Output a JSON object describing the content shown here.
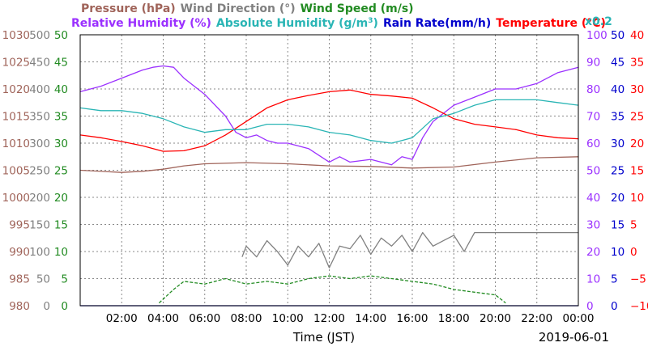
{
  "chart_data": {
    "type": "line",
    "date": "2019-06-01",
    "xlabel": "Time (JST)",
    "x_range_hours": [
      0,
      24
    ],
    "x_ticks": [
      "02:00",
      "04:00",
      "06:00",
      "08:00",
      "10:00",
      "12:00",
      "14:00",
      "16:00",
      "18:00",
      "20:00",
      "22:00",
      "00:00"
    ],
    "grid": true,
    "legend": [
      {
        "name": "Pressure (hPa)",
        "color": "#a0645a"
      },
      {
        "name": "Wind Direction (°)",
        "color": "#808080"
      },
      {
        "name": "Wind Speed (m/s)",
        "color": "#228b22"
      },
      {
        "name": "Relative Humidity (%)",
        "color": "#9b30ff"
      },
      {
        "name": "Absolute Humidity (g/m",
        "sup": "3",
        "close": ")",
        "color": "#2ab5b5"
      },
      {
        "name": "Rain Rate(mm/h)",
        "color": "#0000cc"
      },
      {
        "name": "Temperature (°C)",
        "color": "#ff0000"
      },
      {
        "name": "x0.2",
        "color": "#2ab5b5"
      }
    ],
    "axes": {
      "pressure": {
        "color": "#a0645a",
        "range": [
          980,
          1030
        ],
        "ticks": [
          "1030",
          "1025",
          "1020",
          "1015",
          "1010",
          "1005",
          "1000",
          "995",
          "990",
          "985",
          "980"
        ]
      },
      "wind_direction": {
        "color": "#808080",
        "range": [
          0,
          500
        ],
        "ticks": [
          "500",
          "450",
          "400",
          "350",
          "300",
          "250",
          "200",
          "150",
          "100",
          "50",
          "0"
        ]
      },
      "wind_speed": {
        "color": "#228b22",
        "range": [
          0,
          50
        ],
        "ticks": [
          "50",
          "45",
          "40",
          "35",
          "30",
          "25",
          "20",
          "15",
          "10",
          "5",
          "0"
        ]
      },
      "relative_humidity": {
        "color": "#9b30ff",
        "range": [
          0,
          100
        ],
        "ticks": [
          "100",
          "90",
          "80",
          "70",
          "60",
          "50",
          "40",
          "30",
          "20",
          "10",
          "0"
        ]
      },
      "rain_rate": {
        "color": "#0000cc",
        "range": [
          0,
          50
        ],
        "ticks": [
          "50",
          "45",
          "40",
          "35",
          "30",
          "25",
          "20",
          "15",
          "10",
          "5",
          "0"
        ]
      },
      "temperature": {
        "color": "#ff0000",
        "range": [
          -10,
          40
        ],
        "ticks": [
          "40",
          "35",
          "30",
          "25",
          "20",
          "15",
          "10",
          "5",
          "0",
          "−5",
          "−10"
        ]
      }
    },
    "series": [
      {
        "name": "Relative Humidity (%)",
        "axis": "relative_humidity",
        "color": "#9b30ff",
        "x": [
          0,
          1,
          2,
          3,
          3.5,
          4,
          4.5,
          5,
          6,
          7,
          7.5,
          8,
          8.5,
          9,
          9.5,
          10,
          11,
          12,
          12.5,
          13,
          14,
          15,
          15.5,
          16,
          16.5,
          17,
          18,
          19,
          20,
          21,
          22,
          23,
          24
        ],
        "y": [
          79,
          81,
          84,
          87,
          88,
          88.5,
          88,
          84,
          78,
          70,
          64,
          62,
          63,
          61,
          60,
          60,
          58,
          53,
          55,
          53,
          54,
          52,
          55,
          54,
          62,
          68,
          74,
          77,
          80,
          80,
          82,
          86,
          88
        ]
      },
      {
        "name": "Temperature (°C)",
        "axis": "temperature",
        "color": "#ff0000",
        "x": [
          0,
          1,
          2,
          3,
          4,
          5,
          6,
          7,
          8,
          9,
          10,
          11,
          12,
          13,
          14,
          15,
          16,
          17,
          18,
          19,
          20,
          21,
          22,
          23,
          24
        ],
        "y": [
          21.5,
          21,
          20.3,
          19.5,
          18.5,
          18.6,
          19.5,
          21.5,
          24,
          26.5,
          28,
          28.8,
          29.5,
          29.8,
          29,
          28.7,
          28.3,
          26.5,
          24.5,
          23.5,
          23,
          22.5,
          21.5,
          21,
          20.8
        ]
      },
      {
        "name": "Absolute Humidity (g/m3) x0.2",
        "axis": "relative_humidity",
        "color": "#2ab5b5",
        "x": [
          0,
          1,
          2,
          3,
          4,
          5,
          6,
          7,
          8,
          9,
          10,
          11,
          12,
          13,
          14,
          15,
          15.5,
          16,
          17,
          18,
          19,
          20,
          21,
          22,
          23,
          24
        ],
        "y": [
          73,
          72,
          72,
          71,
          69,
          66,
          64,
          65,
          65,
          67,
          67,
          66,
          64,
          63,
          61,
          60,
          61,
          62,
          69,
          71,
          74,
          76,
          76,
          76,
          75,
          74
        ]
      },
      {
        "name": "Pressure (hPa)",
        "axis": "pressure",
        "color": "#a0645a",
        "x": [
          0,
          2,
          3,
          4,
          5,
          6,
          8,
          10,
          12,
          14,
          16,
          18,
          20,
          22,
          24
        ],
        "y": [
          1005,
          1004.6,
          1004.8,
          1005.2,
          1005.8,
          1006.2,
          1006.4,
          1006.2,
          1005.8,
          1005.7,
          1005.4,
          1005.6,
          1006.5,
          1007.3,
          1007.5
        ]
      },
      {
        "name": "Wind Direction (°)",
        "axis": "wind_direction",
        "color": "#808080",
        "x": [
          7.8,
          8,
          8.5,
          9,
          9.5,
          10,
          10.5,
          11,
          11.5,
          12,
          12.5,
          13,
          13.5,
          14,
          14.5,
          15,
          15.5,
          16,
          16.5,
          17,
          17.5,
          18,
          18.5,
          19,
          20,
          21,
          22,
          23,
          24
        ],
        "y": [
          90,
          110,
          90,
          120,
          100,
          75,
          110,
          90,
          115,
          70,
          110,
          105,
          130,
          95,
          125,
          110,
          130,
          100,
          135,
          110,
          120,
          130,
          100,
          135,
          135,
          135,
          135,
          135,
          135
        ]
      },
      {
        "name": "Wind Speed (m/s)",
        "axis": "wind_speed",
        "color": "#228b22",
        "x": [
          3.8,
          4.5,
          5,
          6,
          7,
          8,
          9,
          10,
          11,
          12,
          13,
          14,
          15,
          16,
          17,
          18,
          19,
          20,
          20.5
        ],
        "y": [
          0.5,
          3,
          4.5,
          4,
          5,
          4,
          4.5,
          4,
          5,
          5.5,
          5,
          5.5,
          5,
          4.5,
          4,
          3,
          2.5,
          2,
          0.5
        ]
      },
      {
        "name": "Rain Rate(mm/h)",
        "axis": "rain_rate",
        "color": "#0000cc",
        "x": [
          0,
          24
        ],
        "y": [
          0,
          0
        ]
      }
    ]
  }
}
